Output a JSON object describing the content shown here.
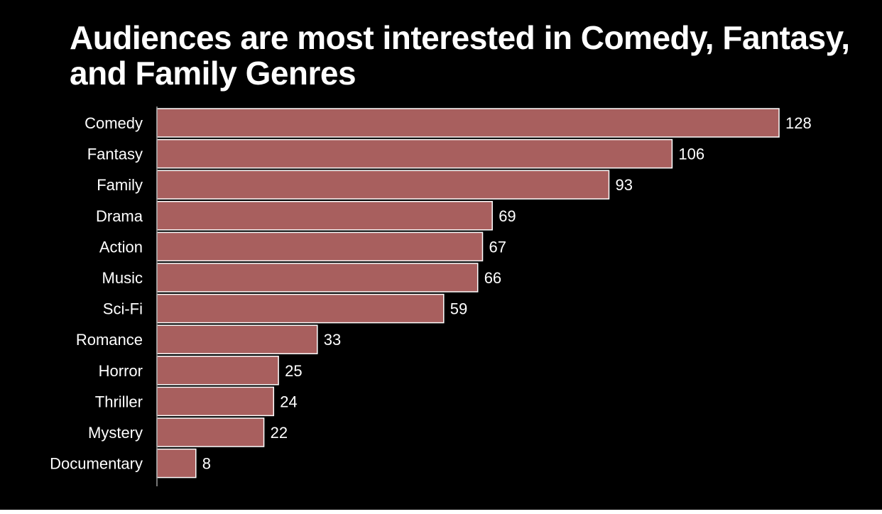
{
  "chart_data": {
    "type": "bar",
    "orientation": "horizontal",
    "title": "Audiences are most interested in Comedy, Fantasy, and Family Genres",
    "categories": [
      "Comedy",
      "Fantasy",
      "Family",
      "Drama",
      "Action",
      "Music",
      "Sci-Fi",
      "Romance",
      "Horror",
      "Thriller",
      "Mystery",
      "Documentary"
    ],
    "values": [
      128,
      106,
      93,
      69,
      67,
      66,
      59,
      33,
      25,
      24,
      22,
      8
    ],
    "xlabel": "",
    "ylabel": "",
    "xlim": [
      0,
      128
    ],
    "grid": false,
    "legend": "none",
    "colors": {
      "background": "#000000",
      "bar": "#a85f5e",
      "bar_border": "#ffffff",
      "text": "#ffffff",
      "axis": "#9e9e9e"
    }
  }
}
